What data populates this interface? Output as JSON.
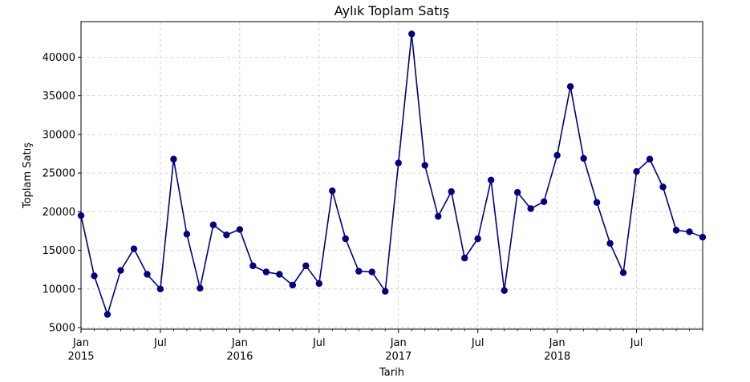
{
  "chart_data": {
    "type": "line",
    "title": "Aylık Toplam Satış",
    "xlabel": "Tarih",
    "ylabel": "Toplam Satış",
    "grid": true,
    "ylim": [
      4800,
      44600
    ],
    "yticks": [
      5000,
      10000,
      15000,
      20000,
      25000,
      30000,
      35000,
      40000
    ],
    "ytick_labels": [
      "5000",
      "10000",
      "15000",
      "20000",
      "25000",
      "30000",
      "35000",
      "40000"
    ],
    "xticks": [
      {
        "month": "2015-01",
        "label": "Jan",
        "sublabel": "2015"
      },
      {
        "month": "2015-07",
        "label": "Jul",
        "sublabel": ""
      },
      {
        "month": "2016-01",
        "label": "Jan",
        "sublabel": "2016"
      },
      {
        "month": "2016-07",
        "label": "Jul",
        "sublabel": ""
      },
      {
        "month": "2017-01",
        "label": "Jan",
        "sublabel": "2017"
      },
      {
        "month": "2017-07",
        "label": "Jul",
        "sublabel": ""
      },
      {
        "month": "2018-01",
        "label": "Jan",
        "sublabel": "2018"
      },
      {
        "month": "2018-07",
        "label": "Jul",
        "sublabel": ""
      }
    ],
    "line_color": "#000080",
    "grid_color": "#cccccc",
    "series": [
      {
        "x": [
          "2015-01",
          "2015-02",
          "2015-03",
          "2015-04",
          "2015-05",
          "2015-06",
          "2015-07",
          "2015-08",
          "2015-09",
          "2015-10",
          "2015-11",
          "2015-12",
          "2016-01",
          "2016-02",
          "2016-03",
          "2016-04",
          "2016-05",
          "2016-06",
          "2016-07",
          "2016-08",
          "2016-09",
          "2016-10",
          "2016-11",
          "2016-12",
          "2017-01",
          "2017-02",
          "2017-03",
          "2017-04",
          "2017-05",
          "2017-06",
          "2017-07",
          "2017-08",
          "2017-09",
          "2017-10",
          "2017-11",
          "2017-12",
          "2018-01",
          "2018-02",
          "2018-03",
          "2018-04",
          "2018-05",
          "2018-06",
          "2018-07",
          "2018-08",
          "2018-09",
          "2018-10",
          "2018-11",
          "2018-12"
        ],
        "values": [
          19500,
          11700,
          6700,
          12400,
          15200,
          11900,
          10000,
          26800,
          17100,
          10100,
          18300,
          17000,
          17700,
          13000,
          12200,
          11900,
          10500,
          13000,
          10700,
          22700,
          16500,
          12300,
          12200,
          9700,
          26300,
          43000,
          26000,
          19400,
          22600,
          14000,
          16500,
          24100,
          9800,
          22500,
          20400,
          21300,
          27300,
          36200,
          26900,
          21200,
          15900,
          12100,
          25200,
          26800,
          23200,
          17600,
          17400,
          16700
        ]
      }
    ]
  }
}
